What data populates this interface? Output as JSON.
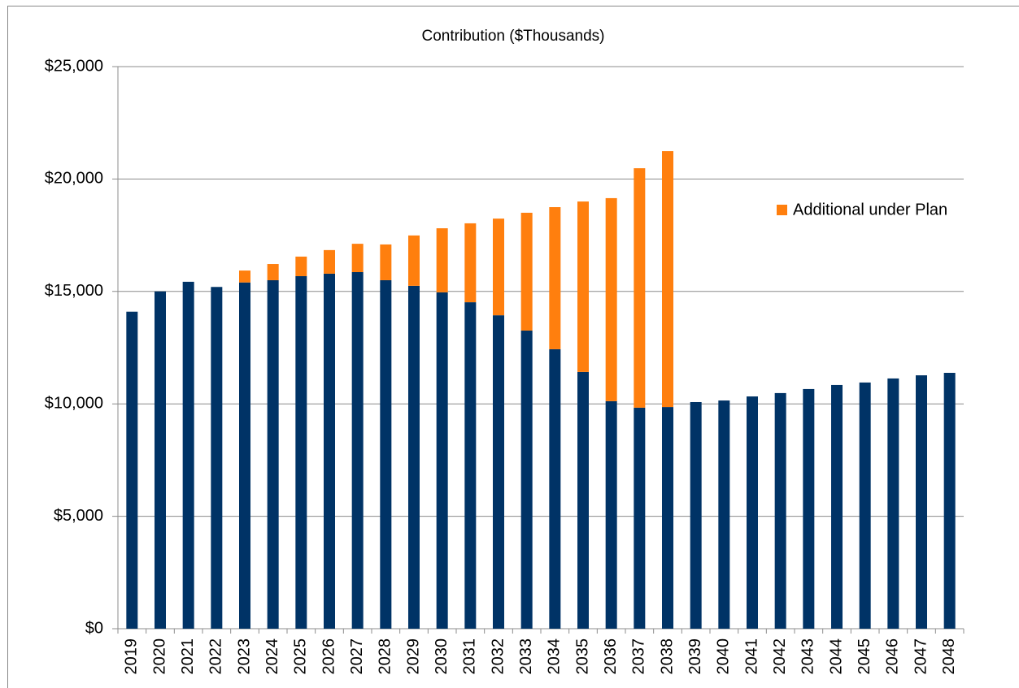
{
  "chart_data": {
    "type": "stacked-bar",
    "title": "Contribution ($Thousands)",
    "categories": [
      "2019",
      "2020",
      "2021",
      "2022",
      "2023",
      "2024",
      "2025",
      "2026",
      "2027",
      "2028",
      "2029",
      "2030",
      "2031",
      "2032",
      "2033",
      "2034",
      "2035",
      "2036",
      "2037",
      "2038",
      "2039",
      "2040",
      "2041",
      "2042",
      "2043",
      "2044",
      "2045",
      "2046",
      "2047",
      "2048"
    ],
    "series": [
      {
        "color": "#003366",
        "values": [
          14100,
          15000,
          15430,
          15200,
          15400,
          15500,
          15680,
          15790,
          15860,
          15500,
          15250,
          14960,
          14520,
          13940,
          13260,
          12430,
          11420,
          10120,
          9830,
          9860,
          10080,
          10150,
          10330,
          10480,
          10660,
          10840,
          10950,
          11130,
          11270,
          11380
        ]
      },
      {
        "name": "Additional under Plan",
        "color": "#ff7f0e",
        "values": [
          null,
          null,
          null,
          null,
          530,
          720,
          870,
          1050,
          1260,
          1590,
          2240,
          2850,
          3510,
          4300,
          5240,
          6320,
          7580,
          9030,
          10650,
          11380,
          null,
          null,
          null,
          null,
          null,
          null,
          null,
          null,
          null,
          null
        ]
      }
    ],
    "ylim": [
      0,
      25000
    ],
    "yticks": [
      {
        "value": 0,
        "label": "$0"
      },
      {
        "value": 5000,
        "label": "$5,000"
      },
      {
        "value": 10000,
        "label": "$10,000"
      },
      {
        "value": 15000,
        "label": "$15,000"
      },
      {
        "value": 20000,
        "label": "$20,000"
      },
      {
        "value": 25000,
        "label": "$25,000"
      }
    ],
    "grid": true,
    "legend": "right"
  }
}
